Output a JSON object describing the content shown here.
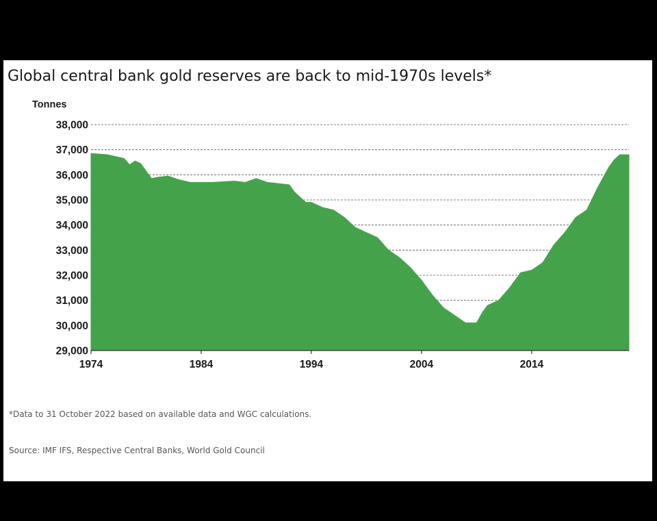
{
  "chart_data": {
    "type": "area",
    "title": "Global central bank gold reserves are back to mid-1970s levels*",
    "ylabel": "Tonnes",
    "xlabel": "",
    "ylim": [
      29000,
      38000
    ],
    "xlim": [
      1974,
      2022.83
    ],
    "y_ticks": [
      "29,000",
      "30,000",
      "31,000",
      "32,000",
      "33,000",
      "34,000",
      "35,000",
      "36,000",
      "37,000",
      "38,000"
    ],
    "y_tick_values": [
      29000,
      30000,
      31000,
      32000,
      33000,
      34000,
      35000,
      36000,
      37000,
      38000
    ],
    "x_ticks": [
      "1974",
      "1984",
      "1994",
      "2004",
      "2014"
    ],
    "x_tick_values": [
      1974,
      1984,
      1994,
      2004,
      2014
    ],
    "grid": "horizontal-dashed",
    "fill_color": "#44a34a",
    "x": [
      1974,
      1975.5,
      1977,
      1977.5,
      1978,
      1978.5,
      1979.5,
      1980,
      1981,
      1982,
      1983,
      1985,
      1987,
      1988,
      1989,
      1990,
      1991,
      1992,
      1992.5,
      1993,
      1993.5,
      1994,
      1995,
      1996,
      1997,
      1998,
      1999,
      2000,
      2001,
      2002,
      2003,
      2004,
      2005,
      2006,
      2007,
      2008,
      2009,
      2009.5,
      2010,
      2011,
      2012,
      2013,
      2014,
      2015,
      2016,
      2017,
      2018,
      2019,
      2020,
      2021,
      2021.5,
      2022,
      2022.83
    ],
    "values": [
      36850,
      36800,
      36650,
      36400,
      36550,
      36450,
      35850,
      35900,
      35950,
      35800,
      35700,
      35700,
      35750,
      35700,
      35850,
      35700,
      35650,
      35600,
      35300,
      35100,
      34900,
      34900,
      34700,
      34600,
      34300,
      33900,
      33700,
      33500,
      33000,
      32700,
      32300,
      31800,
      31200,
      30700,
      30400,
      30100,
      30100,
      30500,
      30800,
      31000,
      31500,
      32100,
      32200,
      32500,
      33200,
      33700,
      34300,
      34600,
      35500,
      36300,
      36600,
      36800,
      36800
    ]
  },
  "footnote": "*Data to 31 October 2022 based on available data and WGC calculations.",
  "source": "Source: IMF IFS, Respective Central Banks, World Gold Council"
}
